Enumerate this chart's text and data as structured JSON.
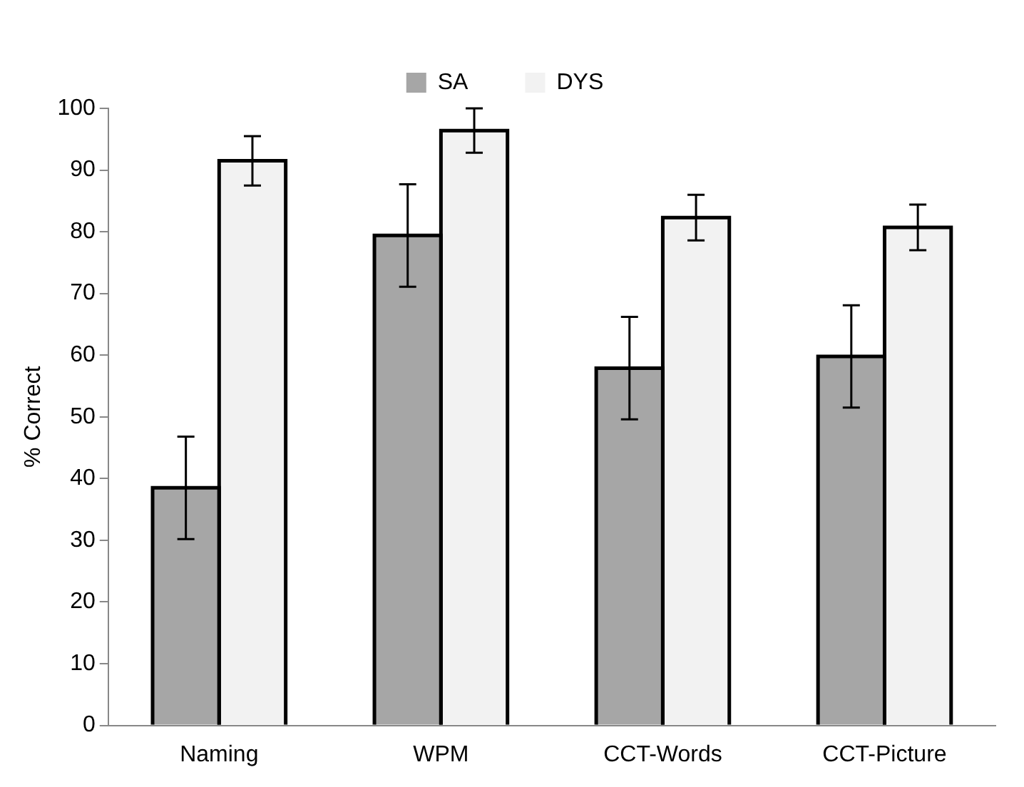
{
  "chart_data": {
    "type": "bar",
    "ylabel": "% Correct",
    "categories": [
      "Naming",
      "WPM",
      "CCT-Words",
      "CCT-Picture"
    ],
    "series": [
      {
        "name": "SA",
        "color": "#a6a6a6",
        "values": [
          38.5,
          79.4,
          57.9,
          59.8
        ],
        "errors": [
          8.3,
          8.3,
          8.3,
          8.3
        ]
      },
      {
        "name": "DYS",
        "color": "#f2f2f2",
        "values": [
          91.5,
          96.4,
          82.3,
          80.7
        ],
        "errors": [
          4,
          3.6,
          3.7,
          3.7
        ]
      }
    ],
    "ylim": [
      0,
      100
    ],
    "yticks": [
      0,
      10,
      20,
      30,
      40,
      50,
      60,
      70,
      80,
      90,
      100
    ],
    "grid": false,
    "legend": "top"
  }
}
